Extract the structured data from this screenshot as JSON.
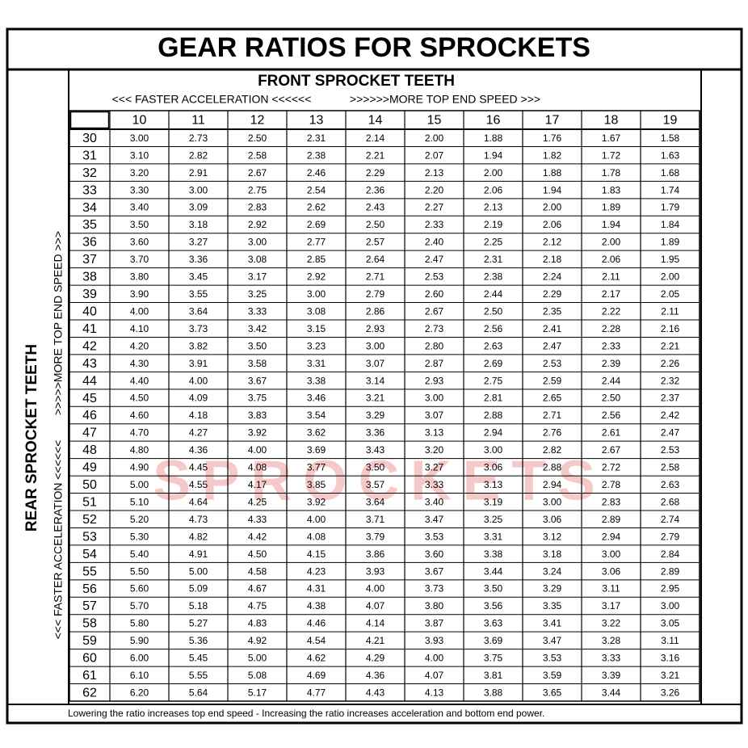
{
  "title": "GEAR RATIOS FOR SPROCKETS",
  "front_header": {
    "title": "FRONT SPROCKET TEETH",
    "left_note": "<<< FASTER  ACCELERATION <<<<<<",
    "right_note": ">>>>>>MORE TOP END SPEED >>>"
  },
  "rear_header": {
    "title": "REAR SPROCKET TEETH",
    "bottom_note": "<<< FASTER  ACCELERATION <<<<<<",
    "top_note": ">>>>>MORE TOP END SPEED >>>"
  },
  "watermark": "SPROCKETS",
  "table": {
    "columns": [
      10,
      11,
      12,
      13,
      14,
      15,
      16,
      17,
      18,
      19
    ],
    "rows": [
      {
        "teeth": 30,
        "ratios": [
          "3.00",
          "2.73",
          "2.50",
          "2.31",
          "2.14",
          "2.00",
          "1.88",
          "1.76",
          "1.67",
          "1.58"
        ]
      },
      {
        "teeth": 31,
        "ratios": [
          "3.10",
          "2.82",
          "2.58",
          "2.38",
          "2.21",
          "2.07",
          "1.94",
          "1.82",
          "1.72",
          "1.63"
        ]
      },
      {
        "teeth": 32,
        "ratios": [
          "3.20",
          "2.91",
          "2.67",
          "2.46",
          "2.29",
          "2.13",
          "2.00",
          "1.88",
          "1.78",
          "1.68"
        ]
      },
      {
        "teeth": 33,
        "ratios": [
          "3.30",
          "3.00",
          "2.75",
          "2.54",
          "2.36",
          "2.20",
          "2.06",
          "1.94",
          "1.83",
          "1.74"
        ]
      },
      {
        "teeth": 34,
        "ratios": [
          "3.40",
          "3.09",
          "2.83",
          "2.62",
          "2.43",
          "2.27",
          "2.13",
          "2.00",
          "1.89",
          "1.79"
        ]
      },
      {
        "teeth": 35,
        "ratios": [
          "3.50",
          "3.18",
          "2.92",
          "2.69",
          "2.50",
          "2.33",
          "2.19",
          "2.06",
          "1.94",
          "1.84"
        ]
      },
      {
        "teeth": 36,
        "ratios": [
          "3.60",
          "3.27",
          "3.00",
          "2.77",
          "2.57",
          "2.40",
          "2.25",
          "2.12",
          "2.00",
          "1.89"
        ]
      },
      {
        "teeth": 37,
        "ratios": [
          "3.70",
          "3.36",
          "3.08",
          "2.85",
          "2.64",
          "2.47",
          "2.31",
          "2.18",
          "2.06",
          "1.95"
        ]
      },
      {
        "teeth": 38,
        "ratios": [
          "3.80",
          "3.45",
          "3.17",
          "2.92",
          "2.71",
          "2.53",
          "2.38",
          "2.24",
          "2.11",
          "2.00"
        ]
      },
      {
        "teeth": 39,
        "ratios": [
          "3.90",
          "3.55",
          "3.25",
          "3.00",
          "2.79",
          "2.60",
          "2.44",
          "2.29",
          "2.17",
          "2.05"
        ]
      },
      {
        "teeth": 40,
        "ratios": [
          "4.00",
          "3.64",
          "3.33",
          "3.08",
          "2.86",
          "2.67",
          "2.50",
          "2.35",
          "2.22",
          "2.11"
        ]
      },
      {
        "teeth": 41,
        "ratios": [
          "4.10",
          "3.73",
          "3.42",
          "3.15",
          "2.93",
          "2.73",
          "2.56",
          "2.41",
          "2.28",
          "2.16"
        ]
      },
      {
        "teeth": 42,
        "ratios": [
          "4.20",
          "3.82",
          "3.50",
          "3.23",
          "3.00",
          "2.80",
          "2.63",
          "2.47",
          "2.33",
          "2.21"
        ]
      },
      {
        "teeth": 43,
        "ratios": [
          "4.30",
          "3.91",
          "3.58",
          "3.31",
          "3.07",
          "2.87",
          "2.69",
          "2.53",
          "2.39",
          "2.26"
        ]
      },
      {
        "teeth": 44,
        "ratios": [
          "4.40",
          "4.00",
          "3.67",
          "3.38",
          "3.14",
          "2.93",
          "2.75",
          "2.59",
          "2.44",
          "2.32"
        ]
      },
      {
        "teeth": 45,
        "ratios": [
          "4.50",
          "4.09",
          "3.75",
          "3.46",
          "3.21",
          "3.00",
          "2.81",
          "2.65",
          "2.50",
          "2.37"
        ]
      },
      {
        "teeth": 46,
        "ratios": [
          "4.60",
          "4.18",
          "3.83",
          "3.54",
          "3.29",
          "3.07",
          "2.88",
          "2.71",
          "2.56",
          "2.42"
        ]
      },
      {
        "teeth": 47,
        "ratios": [
          "4.70",
          "4.27",
          "3.92",
          "3.62",
          "3.36",
          "3.13",
          "2.94",
          "2.76",
          "2.61",
          "2.47"
        ]
      },
      {
        "teeth": 48,
        "ratios": [
          "4.80",
          "4.36",
          "4.00",
          "3.69",
          "3.43",
          "3.20",
          "3.00",
          "2.82",
          "2.67",
          "2.53"
        ]
      },
      {
        "teeth": 49,
        "ratios": [
          "4.90",
          "4.45",
          "4.08",
          "3.77",
          "3.50",
          "3.27",
          "3.06",
          "2.88",
          "2.72",
          "2.58"
        ]
      },
      {
        "teeth": 50,
        "ratios": [
          "5.00",
          "4.55",
          "4.17",
          "3.85",
          "3.57",
          "3.33",
          "3.13",
          "2.94",
          "2.78",
          "2.63"
        ]
      },
      {
        "teeth": 51,
        "ratios": [
          "5.10",
          "4.64",
          "4.25",
          "3.92",
          "3.64",
          "3.40",
          "3.19",
          "3.00",
          "2.83",
          "2.68"
        ]
      },
      {
        "teeth": 52,
        "ratios": [
          "5.20",
          "4.73",
          "4.33",
          "4.00",
          "3.71",
          "3.47",
          "3.25",
          "3.06",
          "2.89",
          "2.74"
        ]
      },
      {
        "teeth": 53,
        "ratios": [
          "5.30",
          "4.82",
          "4.42",
          "4.08",
          "3.79",
          "3.53",
          "3.31",
          "3.12",
          "2.94",
          "2.79"
        ]
      },
      {
        "teeth": 54,
        "ratios": [
          "5.40",
          "4.91",
          "4.50",
          "4.15",
          "3.86",
          "3.60",
          "3.38",
          "3.18",
          "3.00",
          "2.84"
        ]
      },
      {
        "teeth": 55,
        "ratios": [
          "5.50",
          "5.00",
          "4.58",
          "4.23",
          "3.93",
          "3.67",
          "3.44",
          "3.24",
          "3.06",
          "2.89"
        ]
      },
      {
        "teeth": 56,
        "ratios": [
          "5.60",
          "5.09",
          "4.67",
          "4.31",
          "4.00",
          "3.73",
          "3.50",
          "3.29",
          "3.11",
          "2.95"
        ]
      },
      {
        "teeth": 57,
        "ratios": [
          "5.70",
          "5.18",
          "4.75",
          "4.38",
          "4.07",
          "3.80",
          "3.56",
          "3.35",
          "3.17",
          "3.00"
        ]
      },
      {
        "teeth": 58,
        "ratios": [
          "5.80",
          "5.27",
          "4.83",
          "4.46",
          "4.14",
          "3.87",
          "3.63",
          "3.41",
          "3.22",
          "3.05"
        ]
      },
      {
        "teeth": 59,
        "ratios": [
          "5.90",
          "5.36",
          "4.92",
          "4.54",
          "4.21",
          "3.93",
          "3.69",
          "3.47",
          "3.28",
          "3.11"
        ]
      },
      {
        "teeth": 60,
        "ratios": [
          "6.00",
          "5.45",
          "5.00",
          "4.62",
          "4.29",
          "4.00",
          "3.75",
          "3.53",
          "3.33",
          "3.16"
        ]
      },
      {
        "teeth": 61,
        "ratios": [
          "6.10",
          "5.55",
          "5.08",
          "4.69",
          "4.36",
          "4.07",
          "3.81",
          "3.59",
          "3.39",
          "3.21"
        ]
      },
      {
        "teeth": 62,
        "ratios": [
          "6.20",
          "5.64",
          "5.17",
          "4.77",
          "4.43",
          "4.13",
          "3.88",
          "3.65",
          "3.44",
          "3.26"
        ]
      }
    ]
  },
  "footer": "Lowering the ratio increases top end speed - Increasing the ratio increases acceleration and bottom end power."
}
